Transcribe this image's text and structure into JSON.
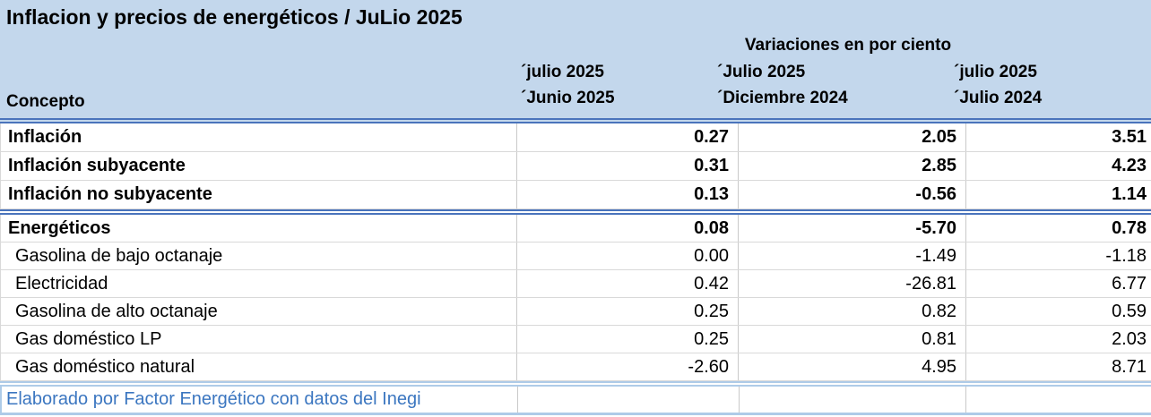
{
  "title": "Inflacion y precios de energéticos / JuLio 2025",
  "chart_data": {
    "type": "table",
    "title": "Inflacion y precios de energéticos / JuLio 2025",
    "group_header": "Variaciones en por ciento",
    "concept_header": "Concepto",
    "column_headers": [
      {
        "line1": "´julio 2025",
        "line2": "´Junio 2025"
      },
      {
        "line1": "´Julio 2025",
        "line2": "´Diciembre 2024"
      },
      {
        "line1": "´julio 2025",
        "line2": "´Julio 2024"
      }
    ],
    "sections": [
      {
        "rows": [
          {
            "concept": "Inflación",
            "bold": true,
            "values": [
              "0.27",
              "2.05",
              "3.51"
            ]
          },
          {
            "concept": "Inflación subyacente",
            "bold": true,
            "values": [
              "0.31",
              "2.85",
              "4.23"
            ]
          },
          {
            "concept": "Inflación no subyacente",
            "bold": true,
            "values": [
              "0.13",
              "-0.56",
              "1.14"
            ]
          }
        ]
      },
      {
        "rows": [
          {
            "concept": "Energéticos",
            "bold": true,
            "values": [
              "0.08",
              "-5.70",
              "0.78"
            ]
          },
          {
            "concept": "Gasolina de bajo octanaje",
            "bold": false,
            "values": [
              "0.00",
              "-1.49",
              "-1.18"
            ]
          },
          {
            "concept": "Electricidad",
            "bold": false,
            "values": [
              "0.42",
              "-26.81",
              "6.77"
            ]
          },
          {
            "concept": "Gasolina de alto octanaje",
            "bold": false,
            "values": [
              "0.25",
              "0.82",
              "0.59"
            ]
          },
          {
            "concept": "Gas doméstico LP",
            "bold": false,
            "values": [
              "0.25",
              "0.81",
              "2.03"
            ]
          },
          {
            "concept": "Gas doméstico natural",
            "bold": false,
            "values": [
              "-2.60",
              "4.95",
              "8.71"
            ]
          }
        ]
      }
    ],
    "footer_note": "Elaborado por Factor Energético con datos del Inegi"
  },
  "colors": {
    "header_bg": "#C3D7EC",
    "accent_border": "#4A74BC",
    "light_border": "#AECBE8",
    "footer_text": "#3B76C0",
    "grid_line": "#C9C9C9",
    "row_line": "#D9D9D9"
  }
}
